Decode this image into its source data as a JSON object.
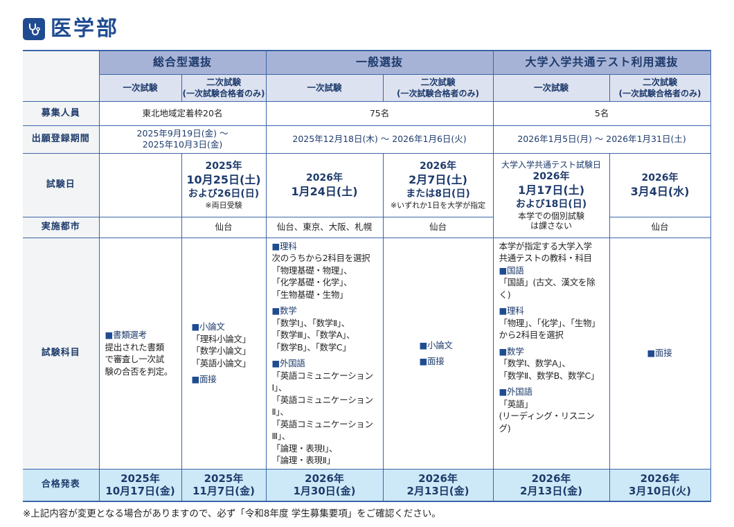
{
  "title": {
    "text": "医学部",
    "icon": "stethoscope-icon",
    "color": "#1f4c91"
  },
  "header": {
    "groups": [
      "総合型選抜",
      "一般選抜",
      "大学入学共通テスト利用選抜"
    ],
    "first": "一次試験",
    "second": "二次試験",
    "second_note": "(一次試験合格者のみ)"
  },
  "rows": {
    "capacity": {
      "label": "募集人員",
      "sogo": "東北地域定着枠20名",
      "ippan": "75名",
      "kyotsu": "5名"
    },
    "period": {
      "label": "出願登録期間",
      "sogo": [
        "2025年9月19日(金) ～",
        "2025年10月3日(金)"
      ],
      "ippan": "2025年12月18日(木) ～ 2026年1月6日(火)",
      "kyotsu": "2026年1月5日(月) ～ 2026年1月31日(土)"
    },
    "exam_date": {
      "label": "試験日",
      "sogo2": {
        "year": "2025年",
        "date": "10月25日(土)",
        "extra": "および26日(日)",
        "note": "※両日受験"
      },
      "ippan1": {
        "year": "2026年",
        "date": "1月24日(土)"
      },
      "ippan2": {
        "year": "2026年",
        "date": "2月7日(土)",
        "extra": "または8日(日)",
        "note": "※いずれか1日を大学が指定"
      },
      "kyotsu1": {
        "caption": "大学入学共通テスト試験日",
        "year": "2026年",
        "date": "1月17日(土)",
        "extra": "および18日(日)",
        "note": "本学での個別試験は課さない"
      },
      "kyotsu2": {
        "year": "2026年",
        "date": "3月4日(水)"
      }
    },
    "city": {
      "label": "実施都市",
      "sogo2": "仙台",
      "ippan1": "仙台、東京、大阪、札幌",
      "ippan2": "仙台",
      "kyotsu2": "仙台"
    },
    "subjects": {
      "label": "試験科目",
      "sogo1": [
        {
          "heading": "書類選考",
          "lines": [
            "提出された書類",
            "で審査し一次試",
            "験の合否を判定。"
          ]
        }
      ],
      "sogo2": [
        {
          "heading": "小論文",
          "lines": [
            "「理科小論文」",
            "「数学小論文」",
            "「英語小論文」"
          ]
        },
        {
          "heading": "面接",
          "lines": []
        }
      ],
      "ippan1": [
        {
          "heading": "理科",
          "lines": [
            "次のうちから2科目を選択",
            "「物理基礎・物理」、",
            "「化学基礎・化学」、",
            "「生物基礎・生物」"
          ]
        },
        {
          "heading": "数学",
          "lines": [
            "「数学Ⅰ」、「数学Ⅱ」、",
            "「数学Ⅲ」、「数学A」、",
            "「数学B」、「数学C」"
          ]
        },
        {
          "heading": "外国語",
          "lines": [
            "「英語コミュニケーションⅠ」、",
            "「英語コミュニケーションⅡ」、",
            "「英語コミュニケーションⅢ」、",
            "「論理・表現Ⅰ」、",
            "「論理・表現Ⅱ」"
          ]
        }
      ],
      "ippan2": [
        {
          "heading": "小論文",
          "lines": []
        },
        {
          "heading": "面接",
          "lines": []
        }
      ],
      "kyotsu1_intro": [
        "本学が指定する大学入学",
        "共通テストの教科・科目"
      ],
      "kyotsu1": [
        {
          "heading": "国語",
          "lines": [
            "「国語」(古文、漢文を除く)"
          ]
        },
        {
          "heading": "理科",
          "lines": [
            "「物理」、「化学」、「生物」",
            "から2科目を選択"
          ]
        },
        {
          "heading": "数学",
          "lines": [
            "「数学Ⅰ、数学A」、",
            "「数学Ⅱ、数学B、数学C」"
          ]
        },
        {
          "heading": "外国語",
          "lines": [
            "「英語」",
            "(リーディング・リスニング)"
          ]
        }
      ],
      "kyotsu2": [
        {
          "heading": "面接",
          "lines": []
        }
      ]
    },
    "results": {
      "label": "合格発表",
      "values": [
        {
          "year": "2025年",
          "date": "10月17日(金)"
        },
        {
          "year": "2025年",
          "date": "11月7日(金)"
        },
        {
          "year": "2026年",
          "date": "1月30日(金)"
        },
        {
          "year": "2026年",
          "date": "2月13日(金)"
        },
        {
          "year": "2026年",
          "date": "2月13日(金)"
        },
        {
          "year": "2026年",
          "date": "3月10日(火)"
        }
      ]
    }
  },
  "footer": "※上記内容が変更となる場合がありますので、必ず「令和8年度 学生募集要項」をご確認ください。",
  "colors": {
    "border": "#3a63a8",
    "header": "#a7b3d6",
    "subheader": "#dde2f0",
    "label_bg": "#f2f4f5",
    "result_bg": "#cde9f7",
    "text_navy": "#1d3a6b"
  }
}
